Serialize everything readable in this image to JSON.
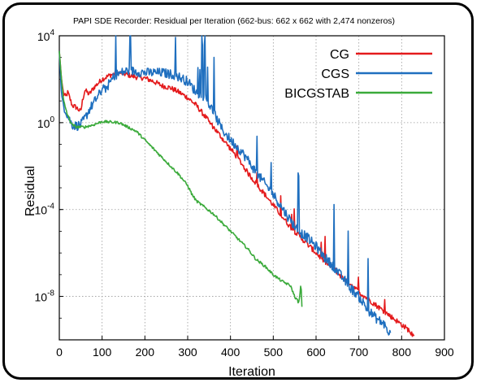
{
  "chart_data": {
    "type": "line",
    "title": "PAPI SDE Recorder: Residual per Iteration (662-bus: 662 x 662 with 2,474 nonzeros)",
    "xlabel": "Iteration",
    "ylabel": "Residual",
    "x_range": [
      0,
      900
    ],
    "y_range_log10": [
      -10,
      4
    ],
    "y_scale": "log",
    "grid": true,
    "legend_position": "top-right",
    "x_ticks": [
      "0",
      "100",
      "200",
      "300",
      "400",
      "500",
      "600",
      "700",
      "800",
      "900"
    ],
    "y_ticks": [
      {
        "base": "10",
        "exp": "4",
        "log10": 4
      },
      {
        "base": "10",
        "exp": "0",
        "log10": 0
      },
      {
        "base": "10",
        "exp": "-4",
        "log10": -4
      },
      {
        "base": "10",
        "exp": "-8",
        "log10": -8
      }
    ],
    "series": [
      {
        "name": "CG",
        "color": "#e41a1c",
        "log10_residual": [
          [
            0,
            3.3
          ],
          [
            5,
            2.0
          ],
          [
            10,
            1.3
          ],
          [
            15,
            1.2
          ],
          [
            20,
            1.4
          ],
          [
            25,
            1.1
          ],
          [
            30,
            0.8
          ],
          [
            40,
            0.7
          ],
          [
            50,
            0.5
          ],
          [
            55,
            1.1
          ],
          [
            60,
            1.5
          ],
          [
            70,
            1.3
          ],
          [
            80,
            1.6
          ],
          [
            90,
            1.8
          ],
          [
            100,
            2.0
          ],
          [
            120,
            2.2
          ],
          [
            140,
            2.3
          ],
          [
            160,
            2.2
          ],
          [
            180,
            2.1
          ],
          [
            200,
            2.05
          ],
          [
            220,
            1.9
          ],
          [
            240,
            1.7
          ],
          [
            260,
            1.6
          ],
          [
            280,
            1.4
          ],
          [
            300,
            1.15
          ],
          [
            320,
            0.8
          ],
          [
            340,
            0.3
          ],
          [
            360,
            -0.2
          ],
          [
            380,
            -0.7
          ],
          [
            400,
            -1.2
          ],
          [
            420,
            -1.7
          ],
          [
            440,
            -2.3
          ],
          [
            460,
            -2.8
          ],
          [
            480,
            -3.3
          ],
          [
            500,
            -3.8
          ],
          [
            520,
            -4.3
          ],
          [
            540,
            -4.8
          ],
          [
            560,
            -5.2
          ],
          [
            580,
            -5.6
          ],
          [
            600,
            -6.0
          ],
          [
            620,
            -6.4
          ],
          [
            640,
            -6.7
          ],
          [
            660,
            -7.1
          ],
          [
            680,
            -7.4
          ],
          [
            700,
            -7.8
          ],
          [
            720,
            -8.1
          ],
          [
            740,
            -8.4
          ],
          [
            760,
            -8.7
          ],
          [
            780,
            -9.0
          ],
          [
            800,
            -9.3
          ],
          [
            820,
            -9.6
          ],
          [
            830,
            -9.9
          ]
        ]
      },
      {
        "name": "CGS",
        "color": "#1f6fbf",
        "log10_residual": [
          [
            0,
            3.3
          ],
          [
            5,
            1.3
          ],
          [
            10,
            0.8
          ],
          [
            20,
            0.3
          ],
          [
            30,
            -0.1
          ],
          [
            40,
            -0.15
          ],
          [
            50,
            -0.1
          ],
          [
            60,
            0.2
          ],
          [
            70,
            0.6
          ],
          [
            80,
            0.9
          ],
          [
            90,
            1.2
          ],
          [
            100,
            1.5
          ],
          [
            110,
            1.6
          ],
          [
            130,
            2.2
          ],
          [
            160,
            2.4
          ],
          [
            200,
            2.3
          ],
          [
            240,
            2.3
          ],
          [
            270,
            2.2
          ],
          [
            300,
            1.9
          ],
          [
            320,
            1.4
          ],
          [
            340,
            1.2
          ],
          [
            360,
            0.5
          ],
          [
            380,
            -0.3
          ],
          [
            400,
            -0.8
          ],
          [
            420,
            -1.2
          ],
          [
            440,
            -1.7
          ],
          [
            460,
            -2.3
          ],
          [
            480,
            -2.8
          ],
          [
            500,
            -3.3
          ],
          [
            520,
            -3.9
          ],
          [
            540,
            -4.5
          ],
          [
            560,
            -5.0
          ],
          [
            580,
            -5.3
          ],
          [
            600,
            -5.7
          ],
          [
            620,
            -6.2
          ],
          [
            640,
            -6.6
          ],
          [
            660,
            -7.1
          ],
          [
            680,
            -7.6
          ],
          [
            700,
            -8.0
          ],
          [
            720,
            -8.6
          ],
          [
            740,
            -9.0
          ],
          [
            760,
            -9.3
          ],
          [
            775,
            -9.8
          ]
        ]
      },
      {
        "name": "BICGSTAB",
        "color": "#3aaa3a",
        "log10_residual": [
          [
            0,
            3.3
          ],
          [
            5,
            2.0
          ],
          [
            10,
            1.0
          ],
          [
            20,
            0.3
          ],
          [
            30,
            -0.1
          ],
          [
            40,
            -0.2
          ],
          [
            60,
            -0.2
          ],
          [
            80,
            -0.1
          ],
          [
            100,
            0.05
          ],
          [
            140,
            0.0
          ],
          [
            180,
            -0.4
          ],
          [
            200,
            -0.8
          ],
          [
            220,
            -1.2
          ],
          [
            240,
            -1.6
          ],
          [
            260,
            -2.0
          ],
          [
            280,
            -2.4
          ],
          [
            300,
            -2.9
          ],
          [
            310,
            -3.3
          ],
          [
            320,
            -3.6
          ],
          [
            340,
            -3.9
          ],
          [
            360,
            -4.2
          ],
          [
            380,
            -4.6
          ],
          [
            400,
            -5.0
          ],
          [
            420,
            -5.4
          ],
          [
            440,
            -5.8
          ],
          [
            460,
            -6.3
          ],
          [
            480,
            -6.6
          ],
          [
            500,
            -7.0
          ],
          [
            520,
            -7.3
          ],
          [
            540,
            -7.5
          ],
          [
            550,
            -8.0
          ],
          [
            560,
            -8.3
          ],
          [
            565,
            -7.4
          ],
          [
            568,
            -9.1
          ]
        ]
      }
    ]
  }
}
